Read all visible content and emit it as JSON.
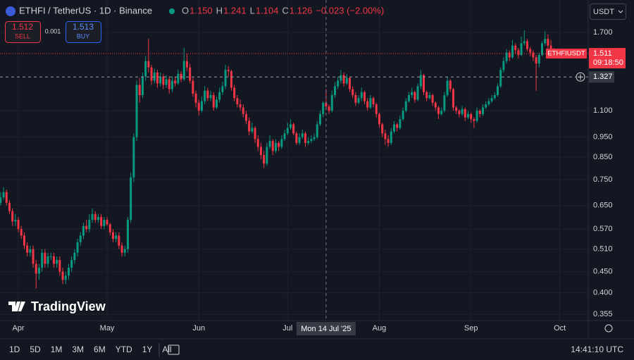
{
  "header": {
    "symbol": "ETHFI / TetherUS · 1D · Binance",
    "ohlc": [
      {
        "label": "O",
        "value": "1.150"
      },
      {
        "label": "H",
        "value": "1.241"
      },
      {
        "label": "L",
        "value": "1.104"
      },
      {
        "label": "C",
        "value": "1.126"
      }
    ],
    "change": "−0.023 (−2.00%)",
    "sell": {
      "price": "1.512",
      "label": "SELL"
    },
    "spread": "0.001",
    "buy": {
      "price": "1.513",
      "label": "BUY"
    },
    "currency": "USDT"
  },
  "chart_data": {
    "type": "candlestick",
    "up_color": "#089981",
    "down_color": "#f23645",
    "grid": true,
    "log_scale": true,
    "ylim": [
      0.343,
      2.035
    ],
    "yticks": [
      {
        "value": 1.7,
        "label": "1.700"
      },
      {
        "value": 1.1,
        "label": "1.100"
      },
      {
        "value": 0.95,
        "label": "0.950"
      },
      {
        "value": 0.85,
        "label": "0.850"
      },
      {
        "value": 0.75,
        "label": "0.750"
      },
      {
        "value": 0.65,
        "label": "0.650"
      },
      {
        "value": 0.57,
        "label": "0.570"
      },
      {
        "value": 0.51,
        "label": "0.510"
      },
      {
        "value": 0.45,
        "label": "0.450"
      },
      {
        "value": 0.4,
        "label": "0.400"
      },
      {
        "value": 0.355,
        "label": "0.355"
      }
    ],
    "xlim": [
      -0.2,
      198.6
    ],
    "xticks": [
      {
        "value": 6,
        "label": "Apr"
      },
      {
        "value": 36,
        "label": "May"
      },
      {
        "value": 67,
        "label": "Jun"
      },
      {
        "value": 97,
        "label": "Jul"
      },
      {
        "value": 128,
        "label": "Aug"
      },
      {
        "value": 159,
        "label": "Sep"
      },
      {
        "value": 189,
        "label": "Oct"
      }
    ],
    "candles": [
      [
        0.66,
        0.7,
        0.65,
        0.68
      ],
      [
        0.68,
        0.72,
        0.67,
        0.7
      ],
      [
        0.7,
        0.71,
        0.65,
        0.66
      ],
      [
        0.66,
        0.67,
        0.62,
        0.63
      ],
      [
        0.63,
        0.64,
        0.58,
        0.595
      ],
      [
        0.595,
        0.62,
        0.58,
        0.6
      ],
      [
        0.6,
        0.61,
        0.56,
        0.57
      ],
      [
        0.57,
        0.58,
        0.54,
        0.55
      ],
      [
        0.55,
        0.56,
        0.51,
        0.52
      ],
      [
        0.52,
        0.53,
        0.49,
        0.5
      ],
      [
        0.5,
        0.52,
        0.49,
        0.51
      ],
      [
        0.51,
        0.52,
        0.46,
        0.47
      ],
      [
        0.47,
        0.48,
        0.41,
        0.445
      ],
      [
        0.445,
        0.47,
        0.43,
        0.46
      ],
      [
        0.46,
        0.51,
        0.45,
        0.5
      ],
      [
        0.5,
        0.51,
        0.46,
        0.47
      ],
      [
        0.47,
        0.5,
        0.46,
        0.49
      ],
      [
        0.49,
        0.5,
        0.48,
        0.49
      ],
      [
        0.49,
        0.5,
        0.46,
        0.47
      ],
      [
        0.47,
        0.49,
        0.46,
        0.48
      ],
      [
        0.48,
        0.49,
        0.44,
        0.45
      ],
      [
        0.45,
        0.46,
        0.42,
        0.43
      ],
      [
        0.43,
        0.45,
        0.42,
        0.44
      ],
      [
        0.44,
        0.47,
        0.43,
        0.46
      ],
      [
        0.46,
        0.49,
        0.45,
        0.48
      ],
      [
        0.48,
        0.51,
        0.47,
        0.5
      ],
      [
        0.5,
        0.54,
        0.49,
        0.53
      ],
      [
        0.53,
        0.56,
        0.52,
        0.55
      ],
      [
        0.55,
        0.59,
        0.54,
        0.58
      ],
      [
        0.58,
        0.6,
        0.56,
        0.57
      ],
      [
        0.57,
        0.62,
        0.56,
        0.6
      ],
      [
        0.6,
        0.64,
        0.59,
        0.62
      ],
      [
        0.62,
        0.63,
        0.59,
        0.6
      ],
      [
        0.6,
        0.62,
        0.59,
        0.61
      ],
      [
        0.61,
        0.62,
        0.57,
        0.58
      ],
      [
        0.58,
        0.61,
        0.57,
        0.6
      ],
      [
        0.6,
        0.61,
        0.58,
        0.585
      ],
      [
        0.585,
        0.59,
        0.55,
        0.56
      ],
      [
        0.56,
        0.57,
        0.53,
        0.54
      ],
      [
        0.54,
        0.56,
        0.53,
        0.55
      ],
      [
        0.55,
        0.56,
        0.51,
        0.52
      ],
      [
        0.52,
        0.53,
        0.49,
        0.5
      ],
      [
        0.5,
        0.52,
        0.49,
        0.51
      ],
      [
        0.51,
        0.61,
        0.5,
        0.6
      ],
      [
        0.6,
        0.78,
        0.59,
        0.76
      ],
      [
        0.76,
        0.97,
        0.74,
        0.95
      ],
      [
        0.95,
        1.3,
        0.93,
        1.27
      ],
      [
        1.27,
        1.32,
        1.15,
        1.2
      ],
      [
        1.2,
        1.36,
        1.18,
        1.33
      ],
      [
        1.33,
        1.49,
        1.3,
        1.45
      ],
      [
        1.45,
        1.64,
        1.36,
        1.4
      ],
      [
        1.4,
        1.42,
        1.27,
        1.3
      ],
      [
        1.3,
        1.39,
        1.28,
        1.36
      ],
      [
        1.36,
        1.38,
        1.25,
        1.28
      ],
      [
        1.28,
        1.36,
        1.26,
        1.33
      ],
      [
        1.33,
        1.35,
        1.24,
        1.27
      ],
      [
        1.27,
        1.34,
        1.25,
        1.31
      ],
      [
        1.31,
        1.33,
        1.21,
        1.24
      ],
      [
        1.24,
        1.33,
        1.22,
        1.3
      ],
      [
        1.3,
        1.33,
        1.26,
        1.28
      ],
      [
        1.28,
        1.38,
        1.27,
        1.35
      ],
      [
        1.35,
        1.37,
        1.29,
        1.31
      ],
      [
        1.31,
        1.56,
        1.3,
        1.45
      ],
      [
        1.45,
        1.51,
        1.37,
        1.4
      ],
      [
        1.4,
        1.43,
        1.28,
        1.3
      ],
      [
        1.3,
        1.32,
        1.19,
        1.21
      ],
      [
        1.21,
        1.23,
        1.12,
        1.15
      ],
      [
        1.15,
        1.17,
        1.07,
        1.1
      ],
      [
        1.1,
        1.19,
        1.09,
        1.16
      ],
      [
        1.16,
        1.26,
        1.14,
        1.23
      ],
      [
        1.23,
        1.25,
        1.16,
        1.18
      ],
      [
        1.18,
        1.23,
        1.16,
        1.2
      ],
      [
        1.2,
        1.22,
        1.1,
        1.12
      ],
      [
        1.12,
        1.19,
        1.11,
        1.17
      ],
      [
        1.17,
        1.25,
        1.15,
        1.22
      ],
      [
        1.22,
        1.29,
        1.2,
        1.26
      ],
      [
        1.26,
        1.42,
        1.24,
        1.38
      ],
      [
        1.38,
        1.41,
        1.33,
        1.37
      ],
      [
        1.37,
        1.38,
        1.23,
        1.25
      ],
      [
        1.25,
        1.27,
        1.16,
        1.18
      ],
      [
        1.18,
        1.2,
        1.12,
        1.14
      ],
      [
        1.14,
        1.17,
        1.1,
        1.12
      ],
      [
        1.12,
        1.14,
        1.06,
        1.08
      ],
      [
        1.08,
        1.1,
        1.02,
        1.04
      ],
      [
        1.04,
        1.06,
        0.96,
        0.98
      ],
      [
        0.98,
        1.03,
        0.97,
        1.0
      ],
      [
        1.0,
        1.01,
        0.92,
        0.94
      ],
      [
        0.94,
        0.96,
        0.88,
        0.9
      ],
      [
        0.9,
        0.92,
        0.84,
        0.86
      ],
      [
        0.86,
        0.88,
        0.8,
        0.82
      ],
      [
        0.82,
        0.92,
        0.81,
        0.9
      ],
      [
        0.9,
        0.96,
        0.89,
        0.93
      ],
      [
        0.93,
        0.94,
        0.86,
        0.88
      ],
      [
        0.88,
        0.94,
        0.87,
        0.92
      ],
      [
        0.92,
        0.93,
        0.88,
        0.9
      ],
      [
        0.9,
        0.96,
        0.89,
        0.94
      ],
      [
        0.94,
        0.99,
        0.93,
        0.97
      ],
      [
        0.97,
        1.03,
        0.96,
        1.0
      ],
      [
        1.0,
        1.05,
        0.99,
        1.02
      ],
      [
        1.02,
        1.03,
        0.96,
        0.97
      ],
      [
        0.97,
        0.98,
        0.91,
        0.92
      ],
      [
        0.92,
        0.97,
        0.91,
        0.95
      ],
      [
        0.95,
        0.99,
        0.94,
        0.97
      ],
      [
        0.97,
        0.98,
        0.9,
        0.92
      ],
      [
        0.92,
        0.95,
        0.91,
        0.93
      ],
      [
        0.93,
        0.96,
        0.92,
        0.94
      ],
      [
        0.94,
        0.97,
        0.93,
        0.95
      ],
      [
        0.95,
        1.04,
        0.94,
        1.02
      ],
      [
        1.02,
        1.1,
        1.01,
        1.08
      ],
      [
        1.08,
        1.16,
        1.06,
        1.149
      ],
      [
        1.15,
        1.241,
        1.104,
        1.126
      ],
      [
        1.126,
        1.14,
        1.08,
        1.1
      ],
      [
        1.1,
        1.23,
        1.09,
        1.2
      ],
      [
        1.2,
        1.29,
        1.18,
        1.26
      ],
      [
        1.26,
        1.33,
        1.24,
        1.3
      ],
      [
        1.3,
        1.38,
        1.28,
        1.34
      ],
      [
        1.34,
        1.36,
        1.26,
        1.28
      ],
      [
        1.28,
        1.35,
        1.27,
        1.32
      ],
      [
        1.32,
        1.33,
        1.22,
        1.24
      ],
      [
        1.24,
        1.26,
        1.18,
        1.2
      ],
      [
        1.2,
        1.22,
        1.13,
        1.15
      ],
      [
        1.15,
        1.2,
        1.14,
        1.18
      ],
      [
        1.18,
        1.25,
        1.16,
        1.22
      ],
      [
        1.22,
        1.23,
        1.14,
        1.16
      ],
      [
        1.16,
        1.18,
        1.1,
        1.12
      ],
      [
        1.12,
        1.2,
        1.11,
        1.18
      ],
      [
        1.18,
        1.19,
        1.12,
        1.14
      ],
      [
        1.14,
        1.15,
        1.06,
        1.08
      ],
      [
        1.08,
        1.09,
        1.0,
        1.02
      ],
      [
        1.02,
        1.03,
        0.95,
        0.97
      ],
      [
        0.97,
        0.99,
        0.91,
        0.94
      ],
      [
        0.94,
        0.96,
        0.9,
        0.92
      ],
      [
        0.92,
        1.0,
        0.91,
        0.98
      ],
      [
        0.98,
        1.04,
        0.97,
        1.02
      ],
      [
        1.02,
        1.03,
        0.98,
        1.0
      ],
      [
        1.0,
        1.07,
        0.99,
        1.05
      ],
      [
        1.05,
        1.12,
        1.04,
        1.1
      ],
      [
        1.1,
        1.18,
        1.09,
        1.16
      ],
      [
        1.16,
        1.22,
        1.15,
        1.2
      ],
      [
        1.2,
        1.25,
        1.18,
        1.22
      ],
      [
        1.22,
        1.23,
        1.15,
        1.17
      ],
      [
        1.17,
        1.28,
        1.16,
        1.26
      ],
      [
        1.26,
        1.38,
        1.24,
        1.34
      ],
      [
        1.34,
        1.35,
        1.2,
        1.22
      ],
      [
        1.22,
        1.23,
        1.16,
        1.18
      ],
      [
        1.18,
        1.22,
        1.17,
        1.2
      ],
      [
        1.2,
        1.21,
        1.13,
        1.15
      ],
      [
        1.15,
        1.16,
        1.1,
        1.12
      ],
      [
        1.12,
        1.13,
        1.05,
        1.08
      ],
      [
        1.08,
        1.12,
        1.07,
        1.1
      ],
      [
        1.1,
        1.22,
        1.09,
        1.2
      ],
      [
        1.2,
        1.33,
        1.19,
        1.3
      ],
      [
        1.3,
        1.31,
        1.22,
        1.24
      ],
      [
        1.24,
        1.25,
        1.1,
        1.12
      ],
      [
        1.12,
        1.13,
        1.08,
        1.1
      ],
      [
        1.1,
        1.11,
        1.06,
        1.08
      ],
      [
        1.08,
        1.13,
        1.07,
        1.11
      ],
      [
        1.11,
        1.12,
        1.04,
        1.06
      ],
      [
        1.06,
        1.1,
        1.05,
        1.08
      ],
      [
        1.08,
        1.09,
        1.03,
        1.05
      ],
      [
        1.05,
        1.06,
        1.0,
        1.04
      ],
      [
        1.04,
        1.12,
        1.03,
        1.1
      ],
      [
        1.1,
        1.11,
        1.06,
        1.08
      ],
      [
        1.08,
        1.14,
        1.07,
        1.12
      ],
      [
        1.12,
        1.16,
        1.11,
        1.14
      ],
      [
        1.14,
        1.18,
        1.13,
        1.16
      ],
      [
        1.16,
        1.2,
        1.15,
        1.18
      ],
      [
        1.18,
        1.22,
        1.17,
        1.2
      ],
      [
        1.2,
        1.28,
        1.19,
        1.26
      ],
      [
        1.26,
        1.4,
        1.25,
        1.38
      ],
      [
        1.38,
        1.48,
        1.36,
        1.45
      ],
      [
        1.45,
        1.55,
        1.43,
        1.52
      ],
      [
        1.52,
        1.54,
        1.45,
        1.48
      ],
      [
        1.48,
        1.63,
        1.47,
        1.58
      ],
      [
        1.58,
        1.6,
        1.51,
        1.54
      ],
      [
        1.54,
        1.56,
        1.47,
        1.5
      ],
      [
        1.5,
        1.66,
        1.49,
        1.6
      ],
      [
        1.6,
        1.72,
        1.58,
        1.62
      ],
      [
        1.62,
        1.64,
        1.53,
        1.55
      ],
      [
        1.55,
        1.57,
        1.49,
        1.52
      ],
      [
        1.52,
        1.54,
        1.45,
        1.48
      ],
      [
        1.48,
        1.5,
        1.23,
        1.43
      ],
      [
        1.43,
        1.52,
        1.4,
        1.5
      ],
      [
        1.5,
        1.62,
        1.49,
        1.6
      ],
      [
        1.6,
        1.71,
        1.58,
        1.64
      ],
      [
        1.64,
        1.68,
        1.55,
        1.58
      ],
      [
        1.58,
        1.63,
        1.52,
        1.534
      ],
      [
        1.534,
        1.56,
        1.5,
        1.511
      ]
    ],
    "last_price": {
      "symbol": "ETHFIUSDT",
      "value": 1.511,
      "label": "1.511",
      "countdown": "09:18:50"
    },
    "crosshair": {
      "x": 110,
      "x_label": "Mon 14 Jul '25",
      "y": 1.327
    }
  },
  "watermark": "TradingView",
  "timeframes": [
    "1D",
    "5D",
    "1M",
    "3M",
    "6M",
    "YTD",
    "1Y",
    "All"
  ],
  "clock": "14:41:10 UTC"
}
